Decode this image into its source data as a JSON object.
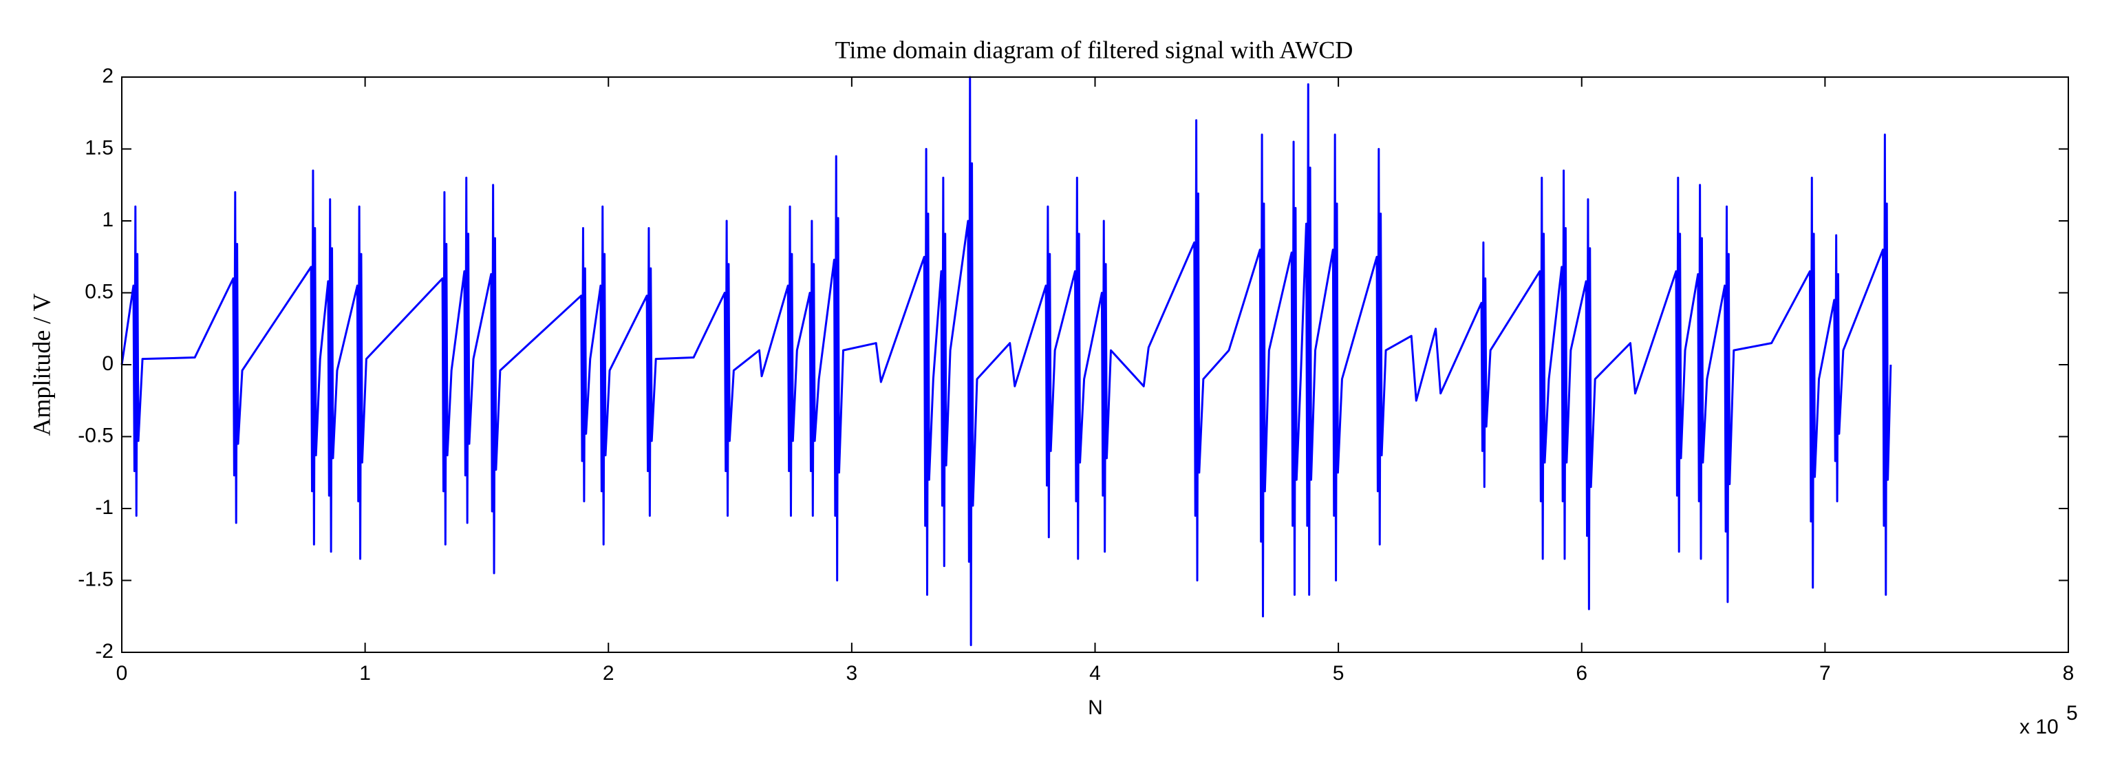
{
  "chart_data": {
    "type": "line",
    "title": "Time domain diagram of filtered signal with AWCD",
    "xlabel": "N",
    "ylabel": "Amplitude / V",
    "x_multiplier": {
      "text": "x 10",
      "exponent": "5"
    },
    "xlim": [
      0,
      8
    ],
    "ylim": [
      -2,
      2
    ],
    "xticks": [
      0,
      1,
      2,
      3,
      4,
      5,
      6,
      7,
      8
    ],
    "yticks": [
      -2,
      -1.5,
      -1,
      -0.5,
      0,
      0.5,
      1,
      1.5,
      2
    ],
    "grid": false,
    "x": [
      0,
      0.048,
      0.052,
      0.056,
      0.06,
      0.064,
      0.068,
      0.085,
      0.3,
      0.458,
      0.462,
      0.466,
      0.47,
      0.474,
      0.478,
      0.495,
      0.778,
      0.782,
      0.786,
      0.79,
      0.794,
      0.798,
      0.815,
      0.848,
      0.852,
      0.856,
      0.86,
      0.864,
      0.868,
      0.885,
      0.968,
      0.972,
      0.976,
      0.98,
      0.984,
      0.988,
      1.005,
      1.318,
      1.322,
      1.326,
      1.33,
      1.334,
      1.338,
      1.355,
      1.408,
      1.412,
      1.416,
      1.42,
      1.424,
      1.428,
      1.445,
      1.518,
      1.522,
      1.526,
      1.53,
      1.534,
      1.538,
      1.555,
      1.888,
      1.892,
      1.896,
      1.9,
      1.904,
      1.908,
      1.925,
      1.968,
      1.972,
      1.976,
      1.98,
      1.984,
      1.988,
      2.005,
      2.158,
      2.162,
      2.166,
      2.17,
      2.174,
      2.178,
      2.195,
      2.35,
      2.478,
      2.482,
      2.486,
      2.49,
      2.494,
      2.498,
      2.515,
      2.62,
      2.63,
      2.738,
      2.742,
      2.746,
      2.75,
      2.754,
      2.758,
      2.775,
      2.828,
      2.832,
      2.836,
      2.84,
      2.844,
      2.848,
      2.865,
      2.928,
      2.932,
      2.936,
      2.94,
      2.944,
      2.948,
      2.965,
      3.1,
      3.12,
      3.298,
      3.302,
      3.306,
      3.31,
      3.314,
      3.318,
      3.335,
      3.368,
      3.372,
      3.376,
      3.38,
      3.384,
      3.388,
      3.405,
      3.478,
      3.482,
      3.486,
      3.49,
      3.494,
      3.498,
      3.515,
      3.65,
      3.67,
      3.798,
      3.802,
      3.806,
      3.81,
      3.814,
      3.818,
      3.835,
      3.918,
      3.922,
      3.926,
      3.93,
      3.934,
      3.938,
      3.955,
      4.028,
      4.032,
      4.036,
      4.04,
      4.044,
      4.048,
      4.065,
      4.2,
      4.22,
      4.408,
      4.412,
      4.416,
      4.42,
      4.424,
      4.428,
      4.445,
      4.55,
      4.678,
      4.682,
      4.686,
      4.69,
      4.694,
      4.698,
      4.715,
      4.808,
      4.812,
      4.816,
      4.82,
      4.824,
      4.828,
      4.845,
      4.868,
      4.872,
      4.876,
      4.88,
      4.884,
      4.888,
      4.905,
      4.978,
      4.982,
      4.986,
      4.99,
      4.994,
      4.998,
      5.015,
      5.158,
      5.162,
      5.166,
      5.17,
      5.174,
      5.178,
      5.195,
      5.3,
      5.32,
      5.4,
      5.42,
      5.588,
      5.592,
      5.596,
      5.6,
      5.604,
      5.608,
      5.625,
      5.828,
      5.832,
      5.836,
      5.84,
      5.844,
      5.848,
      5.865,
      5.918,
      5.922,
      5.926,
      5.93,
      5.934,
      5.938,
      5.955,
      6.018,
      6.022,
      6.026,
      6.03,
      6.034,
      6.038,
      6.055,
      6.2,
      6.22,
      6.388,
      6.392,
      6.396,
      6.4,
      6.404,
      6.408,
      6.425,
      6.478,
      6.482,
      6.486,
      6.49,
      6.494,
      6.498,
      6.515,
      6.588,
      6.592,
      6.596,
      6.6,
      6.604,
      6.608,
      6.625,
      6.78,
      6.938,
      6.942,
      6.946,
      6.95,
      6.954,
      6.958,
      6.975,
      7.038,
      7.042,
      7.046,
      7.05,
      7.054,
      7.058,
      7.075,
      7.238,
      7.242,
      7.246,
      7.25,
      7.254,
      7.258,
      7.27
    ],
    "series": [
      {
        "color": "#0000ff",
        "values": [
          0,
          0.55,
          -0.74,
          1.1,
          -1.05,
          0.77,
          -0.53,
          0.04,
          0.05,
          0.6,
          -0.77,
          1.2,
          -1.1,
          0.84,
          -0.55,
          -0.04,
          0.68,
          -0.88,
          1.35,
          -1.25,
          0.95,
          -0.63,
          0.04,
          0.58,
          -0.91,
          1.15,
          -1.3,
          0.81,
          -0.65,
          -0.04,
          0.55,
          -0.95,
          1.1,
          -1.35,
          0.77,
          -0.68,
          0.04,
          0.6,
          -0.88,
          1.2,
          -1.25,
          0.84,
          -0.63,
          -0.04,
          0.65,
          -0.77,
          1.3,
          -1.1,
          0.91,
          -0.55,
          0.04,
          0.63,
          -1.02,
          1.25,
          -1.45,
          0.88,
          -0.73,
          -0.04,
          0.48,
          -0.67,
          0.95,
          -0.95,
          0.67,
          -0.48,
          0.04,
          0.55,
          -0.88,
          1.1,
          -1.25,
          0.77,
          -0.63,
          -0.04,
          0.48,
          -0.74,
          0.95,
          -1.05,
          0.67,
          -0.53,
          0.04,
          0.05,
          0.5,
          -0.74,
          1.0,
          -1.05,
          0.7,
          -0.53,
          -0.04,
          0.1,
          -0.08,
          0.55,
          -0.74,
          1.1,
          -1.05,
          0.77,
          -0.53,
          0.1,
          0.5,
          -0.74,
          1.0,
          -1.05,
          0.7,
          -0.53,
          -0.1,
          0.73,
          -1.05,
          1.45,
          -1.5,
          1.02,
          -0.75,
          0.1,
          0.15,
          -0.12,
          0.75,
          -1.12,
          1.5,
          -1.6,
          1.05,
          -0.8,
          -0.1,
          0.65,
          -0.98,
          1.3,
          -1.4,
          0.91,
          -0.7,
          0.1,
          1.0,
          -1.37,
          2.0,
          -1.95,
          1.4,
          -0.98,
          -0.1,
          0.15,
          -0.15,
          0.55,
          -0.84,
          1.1,
          -1.2,
          0.77,
          -0.6,
          0.1,
          0.65,
          -0.95,
          1.3,
          -1.35,
          0.91,
          -0.68,
          -0.1,
          0.5,
          -0.91,
          1.0,
          -1.3,
          0.7,
          -0.65,
          0.1,
          -0.15,
          0.12,
          0.85,
          -1.05,
          1.7,
          -1.5,
          1.19,
          -0.75,
          -0.1,
          0.1,
          0.8,
          -1.23,
          1.6,
          -1.75,
          1.12,
          -0.88,
          0.1,
          0.78,
          -1.12,
          1.55,
          -1.6,
          1.09,
          -0.8,
          -0.1,
          0.98,
          -1.12,
          1.95,
          -1.6,
          1.37,
          -0.8,
          0.1,
          0.8,
          -1.05,
          1.6,
          -1.5,
          1.12,
          -0.75,
          -0.1,
          0.75,
          -0.88,
          1.5,
          -1.25,
          1.05,
          -0.63,
          0.1,
          0.2,
          -0.25,
          0.25,
          -0.2,
          0.43,
          -0.6,
          0.85,
          -0.85,
          0.6,
          -0.43,
          0.1,
          0.65,
          -0.95,
          1.3,
          -1.35,
          0.91,
          -0.68,
          -0.1,
          0.68,
          -0.95,
          1.35,
          -1.35,
          0.95,
          -0.68,
          0.1,
          0.58,
          -1.19,
          1.15,
          -1.7,
          0.81,
          -0.85,
          -0.1,
          0.15,
          -0.2,
          0.65,
          -0.91,
          1.3,
          -1.3,
          0.91,
          -0.65,
          0.1,
          0.63,
          -0.95,
          1.25,
          -1.35,
          0.88,
          -0.68,
          -0.1,
          0.55,
          -1.16,
          1.1,
          -1.65,
          0.77,
          -0.83,
          0.1,
          0.15,
          0.65,
          -1.09,
          1.3,
          -1.55,
          0.91,
          -0.78,
          -0.1,
          0.45,
          -0.67,
          0.9,
          -0.95,
          0.63,
          -0.48,
          0.1,
          0.8,
          -1.12,
          1.6,
          -1.6,
          1.12,
          -0.8,
          0
        ]
      }
    ]
  }
}
